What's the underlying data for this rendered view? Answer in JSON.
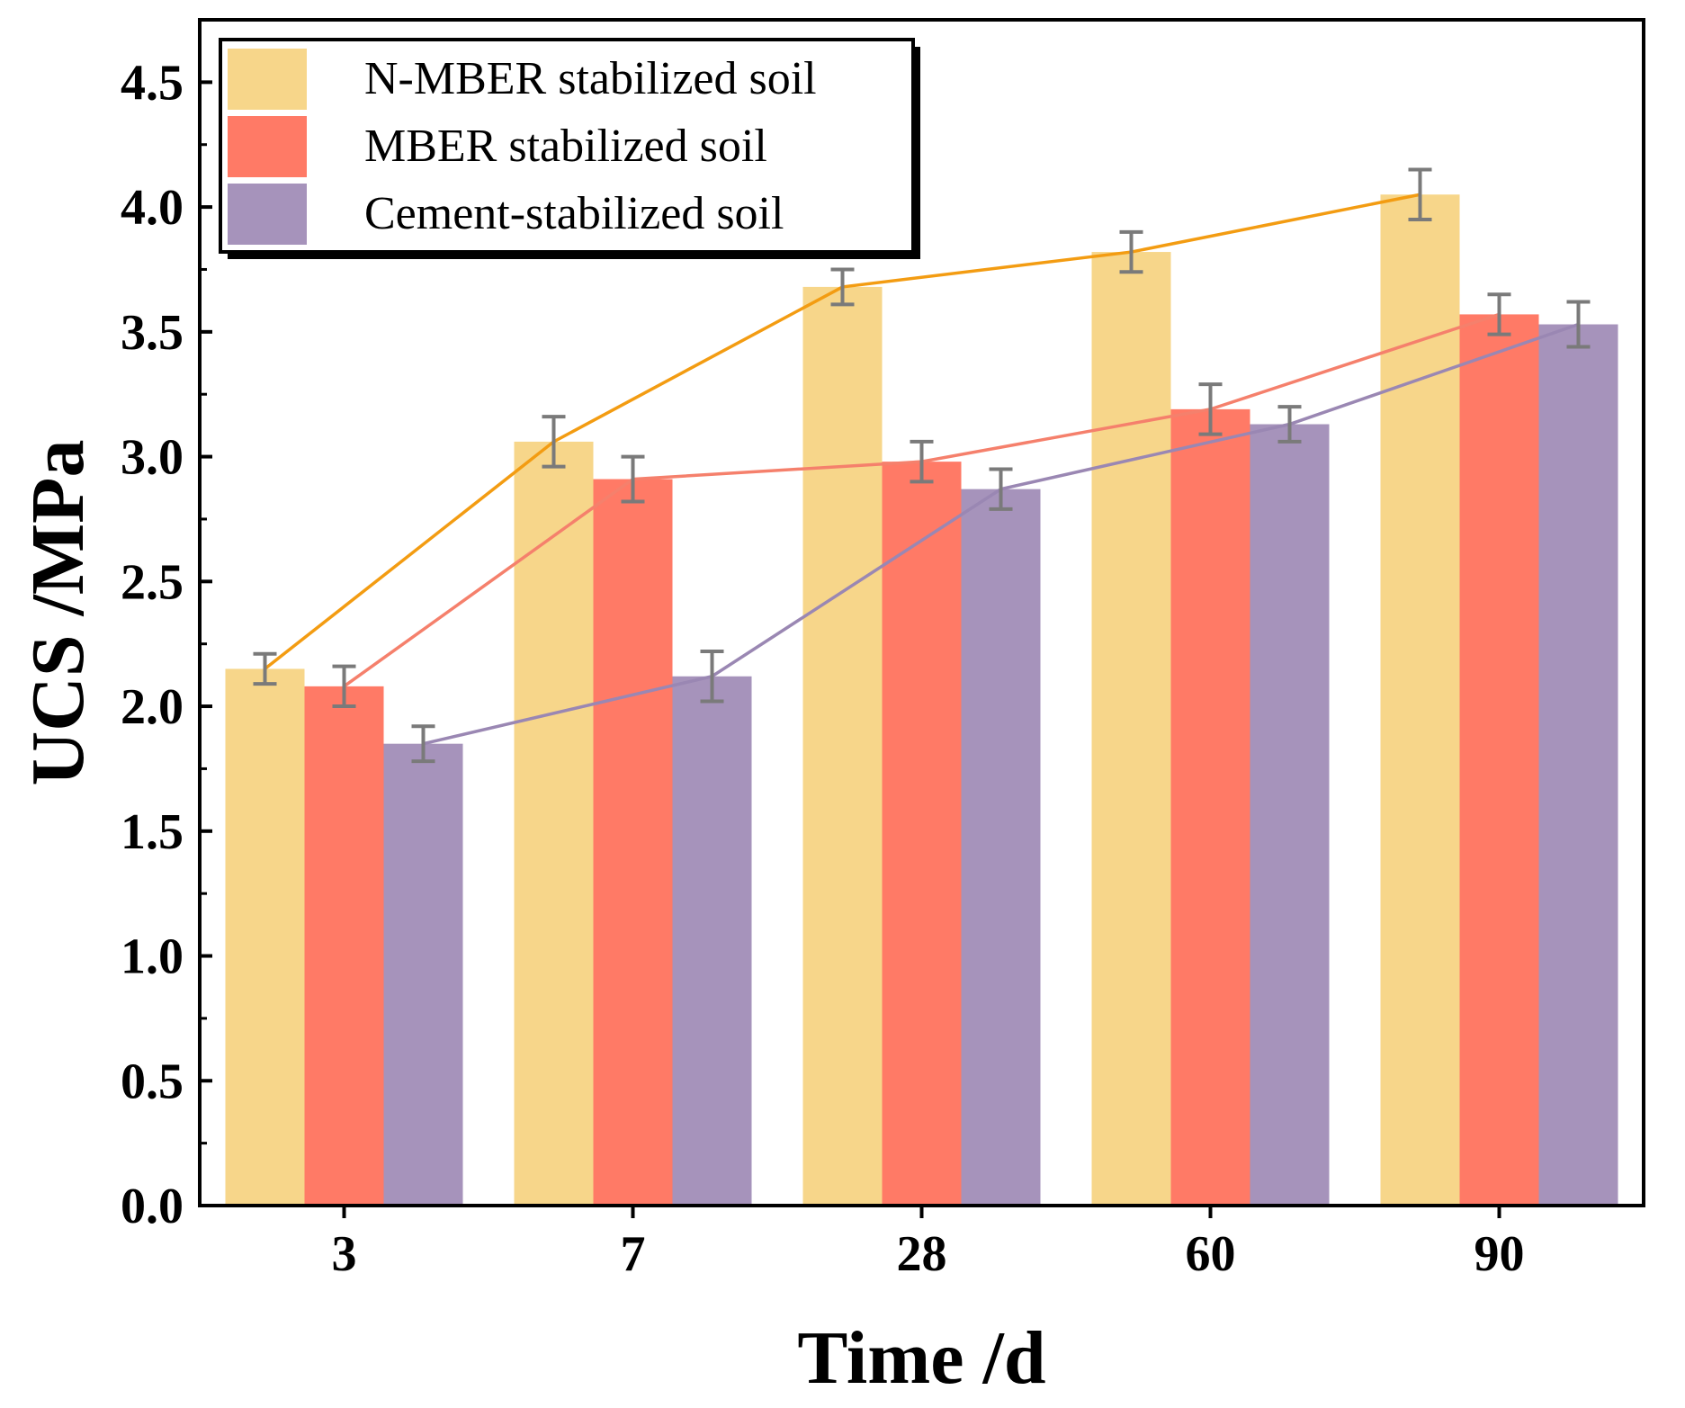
{
  "chart_data": {
    "type": "bar",
    "title": "",
    "xlabel": "Time /d",
    "ylabel": "UCS /MPa",
    "categories": [
      "3",
      "7",
      "28",
      "60",
      "90"
    ],
    "ylim": [
      0,
      4.75
    ],
    "yticks": [
      "0.0",
      "0.5",
      "1.0",
      "1.5",
      "2.0",
      "2.5",
      "3.0",
      "3.5",
      "4.0",
      "4.5"
    ],
    "legend_position": "top-left",
    "series": [
      {
        "name": "N-MBER stabilized soil",
        "values": [
          2.15,
          3.06,
          3.68,
          3.82,
          4.05
        ],
        "errors": [
          0.06,
          0.1,
          0.07,
          0.08,
          0.1
        ],
        "color": "#F7D68A",
        "line_color": "#F39C12"
      },
      {
        "name": "MBER stabilized soil",
        "values": [
          2.08,
          2.91,
          2.98,
          3.19,
          3.57
        ],
        "errors": [
          0.08,
          0.09,
          0.08,
          0.1,
          0.08
        ],
        "color": "#FF7A66",
        "line_color": "#F5806C"
      },
      {
        "name": "Cement-stabilized soil",
        "values": [
          1.85,
          2.12,
          2.87,
          3.13,
          3.53
        ],
        "errors": [
          0.07,
          0.1,
          0.08,
          0.07,
          0.09
        ],
        "color": "#A693BB",
        "line_color": "#9A87B3"
      }
    ]
  }
}
